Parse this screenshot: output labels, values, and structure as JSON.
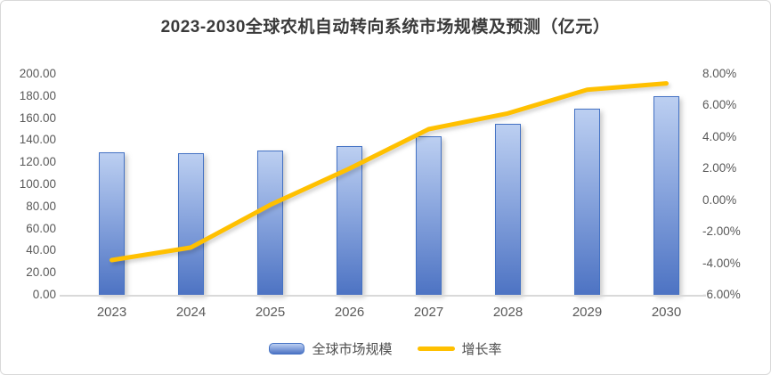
{
  "title": "2023-2030全球农机自动转向系统市场规模及预测（亿元）",
  "chart_data": {
    "type": "bar",
    "subtype": "combo-bar-line-dual-axis",
    "categories": [
      "2023",
      "2024",
      "2025",
      "2026",
      "2027",
      "2028",
      "2029",
      "2030"
    ],
    "series": [
      {
        "name": "全球市场规模",
        "type": "bar",
        "axis": "left",
        "unit": "亿元",
        "color": "#4472c4",
        "values": [
          129.0,
          128.6,
          130.8,
          134.8,
          143.7,
          155.2,
          168.4,
          179.8
        ]
      },
      {
        "name": "增长率",
        "type": "line",
        "axis": "right",
        "unit": "%",
        "color": "#ffc000",
        "values": [
          -3.8,
          -3.0,
          -0.3,
          2.0,
          4.5,
          5.5,
          7.0,
          7.4
        ]
      }
    ],
    "left_axis": {
      "min": 0,
      "max": 200,
      "step": 20,
      "tick_labels": [
        "200.00",
        "180.00",
        "160.00",
        "140.00",
        "120.00",
        "100.00",
        "80.00",
        "60.00",
        "40.00",
        "20.00",
        "0.00"
      ]
    },
    "right_axis": {
      "min": -6,
      "max": 8,
      "step": 2,
      "tick_labels": [
        "8.00%",
        "6.00%",
        "4.00%",
        "2.00%",
        "0.00%",
        "-2.00%",
        "-4.00%",
        "-6.00%"
      ]
    },
    "grid": false,
    "legend_position": "bottom"
  },
  "colors": {
    "bar_fill_top": "#bccff1",
    "bar_fill_bottom": "#4d73c3",
    "bar_border": "#4472c4",
    "line": "#ffc000",
    "axis_text": "#595959",
    "title_text": "#3a3a3a",
    "axis_line": "#d9d9d9"
  }
}
